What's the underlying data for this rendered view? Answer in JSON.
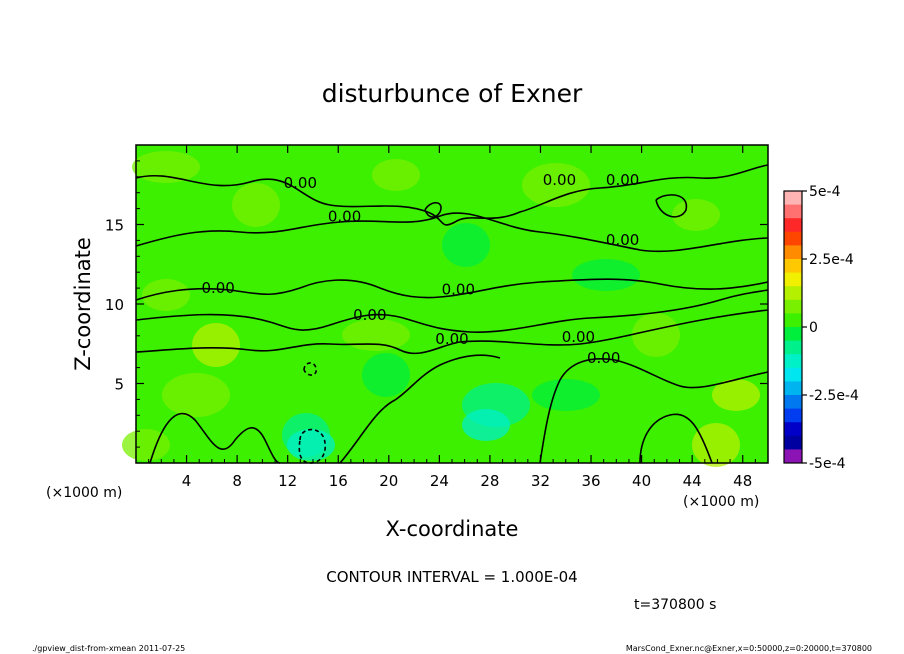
{
  "chart_data": {
    "type": "heatmap",
    "title": "disturbunce of Exner",
    "xlabel": "X-coordinate",
    "ylabel": "Z-coordinate",
    "x_units_left": "(×1000 m)",
    "x_units_right": "(×1000 m)",
    "xlim": [
      0,
      50
    ],
    "ylim": [
      0,
      20
    ],
    "x_ticks": [
      "4",
      "8",
      "12",
      "16",
      "20",
      "24",
      "28",
      "32",
      "36",
      "40",
      "44",
      "48"
    ],
    "x_tick_values": [
      4,
      8,
      12,
      16,
      20,
      24,
      28,
      32,
      36,
      40,
      44,
      48
    ],
    "y_ticks": [
      "5",
      "10",
      "15"
    ],
    "y_tick_values": [
      5,
      10,
      15
    ],
    "contour_labels": [
      {
        "text": "0.00",
        "x": 13,
        "z": 17.3
      },
      {
        "text": "0.00",
        "x": 16.5,
        "z": 15.2
      },
      {
        "text": "0.00",
        "x": 6.5,
        "z": 10.7
      },
      {
        "text": "0.00",
        "x": 18.5,
        "z": 9.0
      },
      {
        "text": "0.00",
        "x": 25.5,
        "z": 10.6
      },
      {
        "text": "0.00",
        "x": 25,
        "z": 7.5
      },
      {
        "text": "0.00",
        "x": 33.5,
        "z": 17.5
      },
      {
        "text": "0.00",
        "x": 38.5,
        "z": 17.5
      },
      {
        "text": "0.00",
        "x": 38.5,
        "z": 13.7
      },
      {
        "text": "0.00",
        "x": 35,
        "z": 7.6
      },
      {
        "text": "0.00",
        "x": 37,
        "z": 6.3
      }
    ],
    "colorbar": {
      "range": [
        -0.0005,
        0.0005
      ],
      "labels": [
        "5e-4",
        "2.5e-4",
        "0",
        "-2.5e-4",
        "-5e-4"
      ],
      "label_values": [
        0.0005,
        0.00025,
        0,
        -0.00025,
        -0.0005
      ],
      "colors": [
        "#ffb4b4",
        "#ff7070",
        "#ff2828",
        "#ff4600",
        "#ff8c00",
        "#ffc800",
        "#f0f000",
        "#b4f000",
        "#78f000",
        "#3cf000",
        "#00ef3c",
        "#00f08c",
        "#00f0c8",
        "#00e6f0",
        "#00b4f0",
        "#0078f0",
        "#003cf0",
        "#0000c8",
        "#0000a0",
        "#8c14b4"
      ]
    },
    "contour_interval_text": "CONTOUR INTERVAL = 1.000E-04",
    "time_text": "t=370800  s"
  },
  "footer": {
    "left": "./gpview_dist-from-xmean  2011-07-25",
    "right": "MarsCond_Exner.nc@Exner,x=0:50000,z=0:20000,t=370800"
  }
}
